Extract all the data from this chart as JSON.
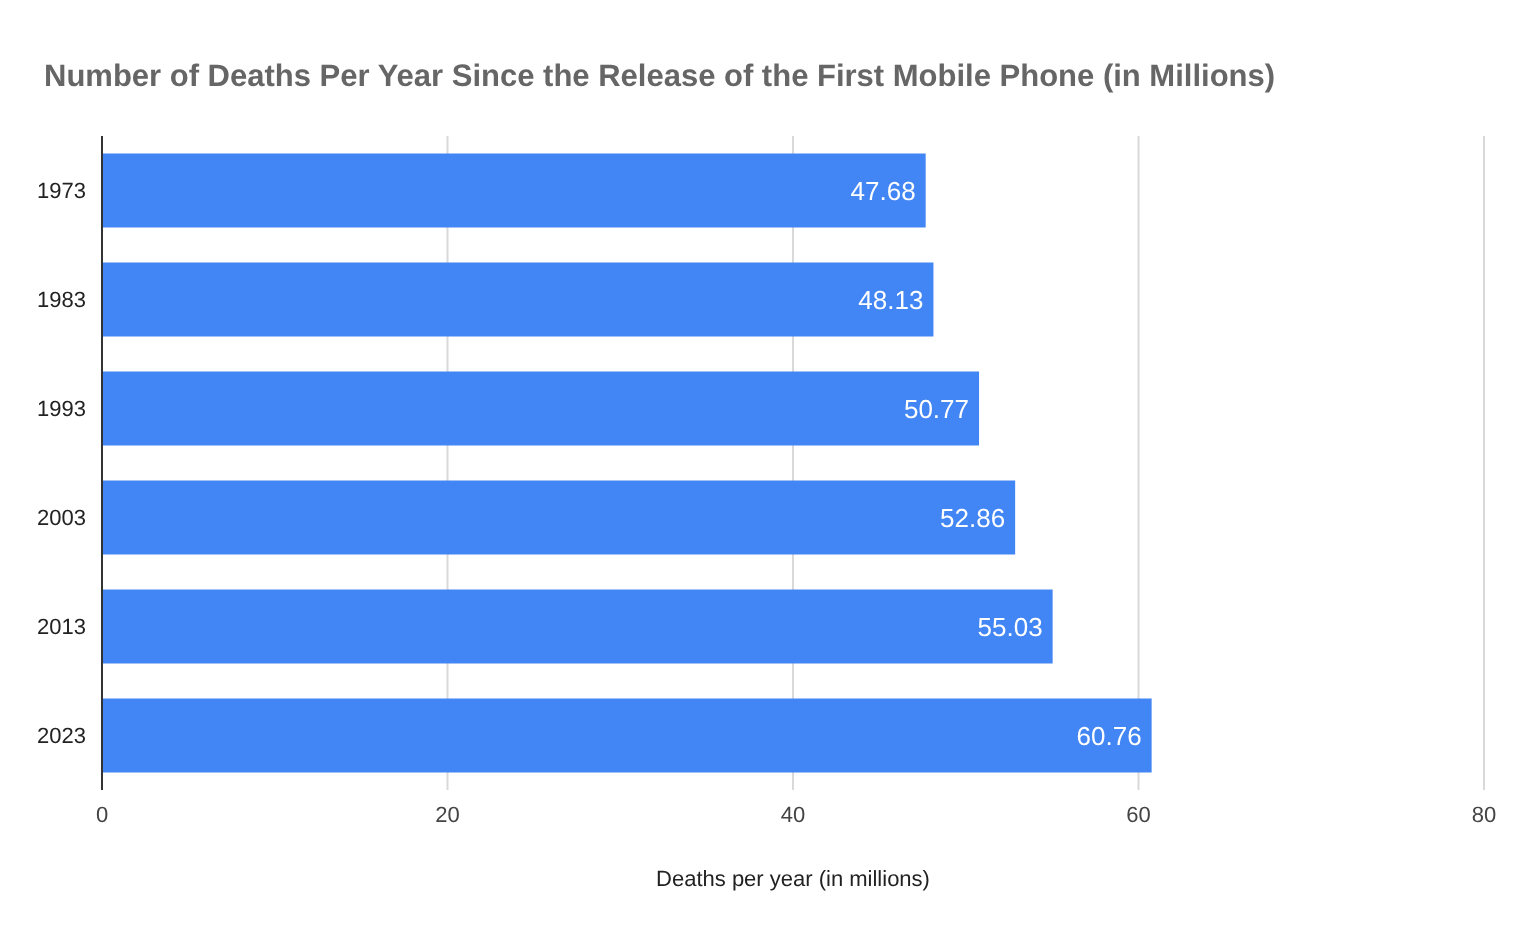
{
  "chart_data": {
    "type": "bar",
    "orientation": "horizontal",
    "title": "Number of Deaths Per Year Since the Release of the First Mobile Phone (in Millions)",
    "xlabel": "Deaths per year (in millions)",
    "categories": [
      "1973",
      "1983",
      "1993",
      "2003",
      "2013",
      "2023"
    ],
    "values": [
      47.68,
      48.13,
      50.77,
      52.86,
      55.03,
      60.76
    ],
    "color": "#4285f4",
    "xlim": [
      0,
      80
    ],
    "xticks": [
      0,
      20,
      40,
      60,
      80
    ],
    "grid": "x",
    "data_labels": true
  }
}
